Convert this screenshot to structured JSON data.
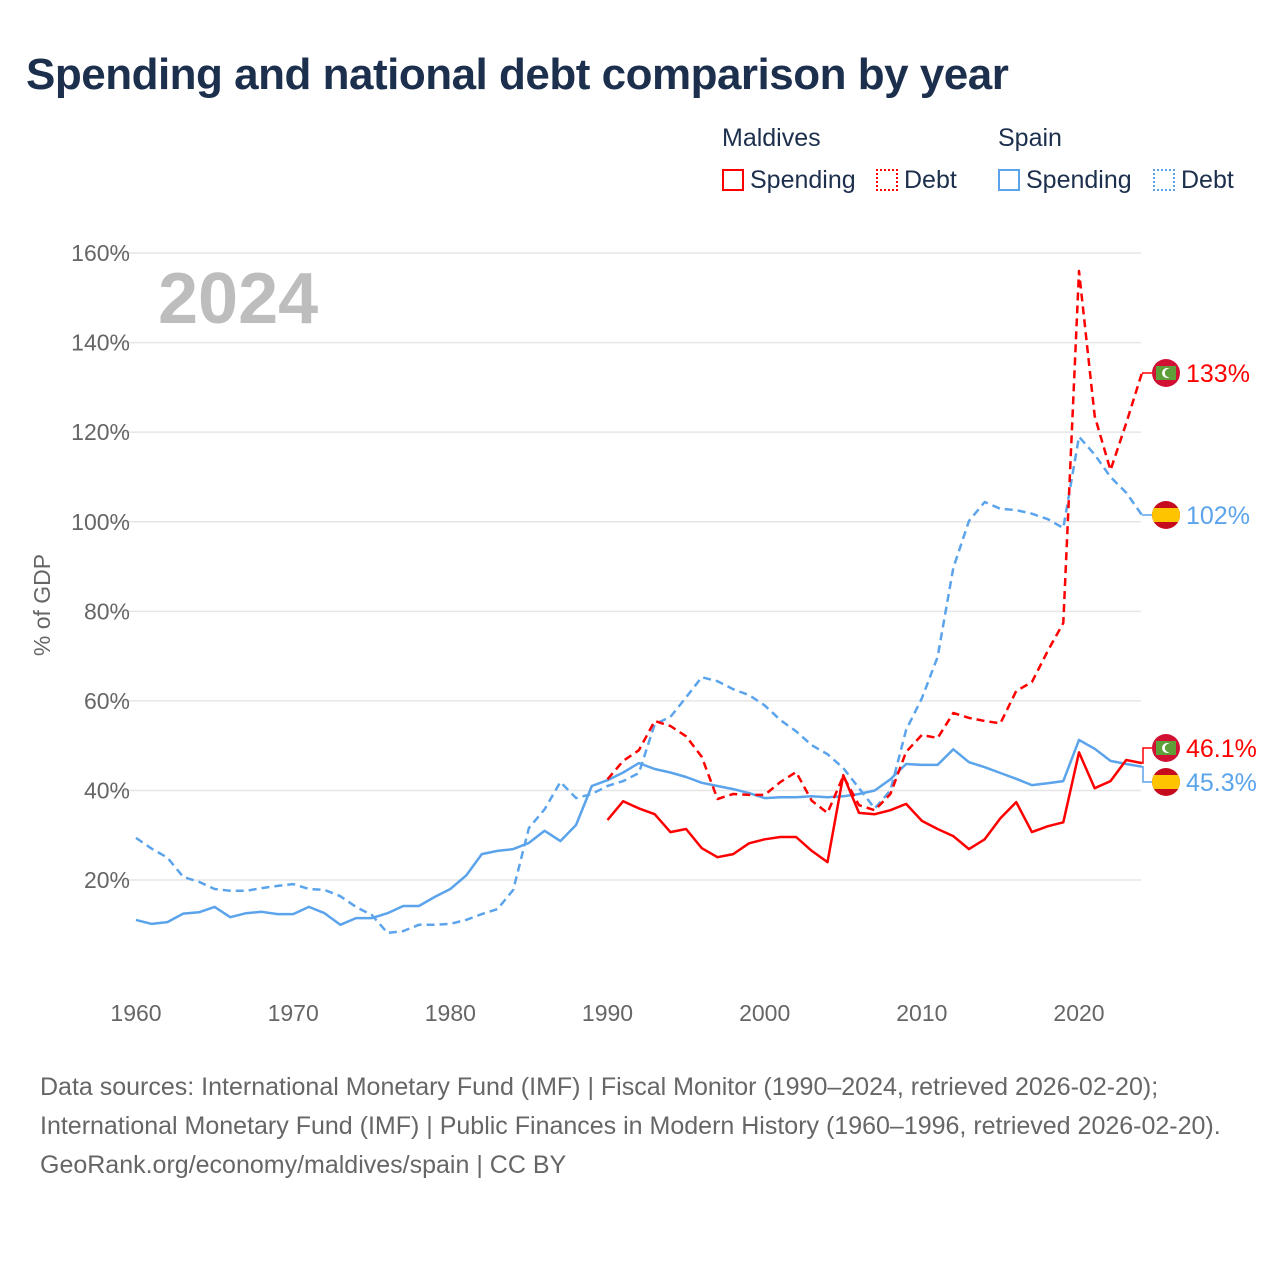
{
  "title": "Spending and national debt comparison by year",
  "legend": {
    "groups": [
      {
        "country": "Maldives",
        "color": "#ff0000",
        "items": [
          "Spending",
          "Debt"
        ]
      },
      {
        "country": "Spain",
        "color": "#5ba4ec",
        "items": [
          "Spending",
          "Debt"
        ]
      }
    ]
  },
  "year_watermark": "2024",
  "end_labels": {
    "maldives_debt": "133%",
    "spain_debt": "102%",
    "maldives_spending": "46.1%",
    "spain_spending": "45.3%"
  },
  "flags": {
    "maldives": "maldives-flag-icon",
    "spain": "spain-flag-icon"
  },
  "sources": {
    "line1": "Data sources: International Monetary Fund (IMF) | Fiscal Monitor (1990–2024, retrieved 2026-02-20); International Monetary Fund (IMF) | Public Finances in Modern History (1960–1996, retrieved 2026-02-20).",
    "line2": "GeoRank.org/economy/maldives/spain | CC BY"
  },
  "chart_data": {
    "type": "line",
    "title": "Spending and national debt comparison by year",
    "xlabel": "",
    "ylabel": "% of GDP",
    "xlim": [
      1960,
      2024
    ],
    "ylim": [
      0,
      160
    ],
    "xticks": [
      1960,
      1970,
      1980,
      1990,
      2000,
      2010,
      2020
    ],
    "yticks": [
      20,
      40,
      60,
      80,
      100,
      120,
      140,
      160
    ],
    "ytick_labels": [
      "20%",
      "40%",
      "60%",
      "80%",
      "100%",
      "120%",
      "140%",
      "160%"
    ],
    "grid": true,
    "legend_position": "top-right",
    "series": [
      {
        "name": "Spain Spending",
        "color": "#5ba4ec",
        "dashed": false,
        "start": 1960,
        "values": [
          11.1,
          10.2,
          10.6,
          12.5,
          12.8,
          14,
          11.7,
          12.6,
          12.9,
          12.4,
          12.4,
          14,
          12.6,
          10,
          11.5,
          11.5,
          12.6,
          14.2,
          14.2,
          16.2,
          18,
          21,
          25.8,
          26.5,
          26.9,
          28.3,
          31,
          28.7,
          32.3,
          41,
          42.3,
          44,
          46.1,
          44.8,
          44,
          43,
          41.7,
          41,
          40.3,
          39.4,
          38.3,
          38.5,
          38.5,
          38.7,
          38.5,
          38.7,
          39.2,
          40,
          42.5,
          45.9,
          45.7,
          45.7,
          49.2,
          46.3,
          45.2,
          43.9,
          42.6,
          41.2,
          41.6,
          42.1,
          51.3,
          49.3,
          46.6,
          45.9,
          45.3
        ]
      },
      {
        "name": "Spain Debt",
        "color": "#5ba4ec",
        "dashed": true,
        "start": 1960,
        "values": [
          29.4,
          27,
          25,
          20.7,
          19.6,
          18,
          17.6,
          17.6,
          18.2,
          18.7,
          19.1,
          18,
          17.8,
          16.4,
          14,
          12.2,
          8.2,
          8.6,
          10,
          10,
          10.2,
          11.1,
          12.4,
          13.5,
          17.8,
          31.6,
          35.8,
          41.9,
          38.3,
          39.2,
          41,
          42.1,
          43.9,
          54.8,
          56.4,
          60.8,
          65.3,
          64.4,
          62.6,
          61.3,
          59,
          55.7,
          53.2,
          50.1,
          48.1,
          45,
          40.5,
          36,
          40,
          53.5,
          60.6,
          69.8,
          89.7,
          100.2,
          104.4,
          102.9,
          102.6,
          101.8,
          100.6,
          98.6,
          119,
          115,
          110,
          106.5,
          101.5
        ]
      },
      {
        "name": "Maldives Spending",
        "color": "#ff0000",
        "dashed": false,
        "start": 1990,
        "values": [
          33.4,
          37.6,
          36,
          34.7,
          30.7,
          31.4,
          27.1,
          25.1,
          25.8,
          28.2,
          29.1,
          29.6,
          29.6,
          26.5,
          24,
          43.4,
          35,
          34.7,
          35.6,
          37,
          33.2,
          31.4,
          29.8,
          26.9,
          29.1,
          33.8,
          37.4,
          30.7,
          32,
          32.9,
          48.5,
          40.5,
          42.1,
          46.8,
          46.1
        ]
      },
      {
        "name": "Maldives Debt",
        "color": "#ff0000",
        "dashed": true,
        "start": 1990,
        "values": [
          42.5,
          46.6,
          49,
          55.5,
          54.4,
          52.1,
          47.5,
          38.1,
          39.2,
          39,
          39,
          41.9,
          44.1,
          37.7,
          35,
          43.2,
          36.7,
          35.6,
          39.2,
          48.6,
          52.4,
          51.7,
          57.3,
          56.2,
          55.5,
          55,
          62.2,
          64.2,
          71.1,
          77.4,
          156,
          123.6,
          111.5,
          122,
          133.2
        ]
      }
    ]
  }
}
